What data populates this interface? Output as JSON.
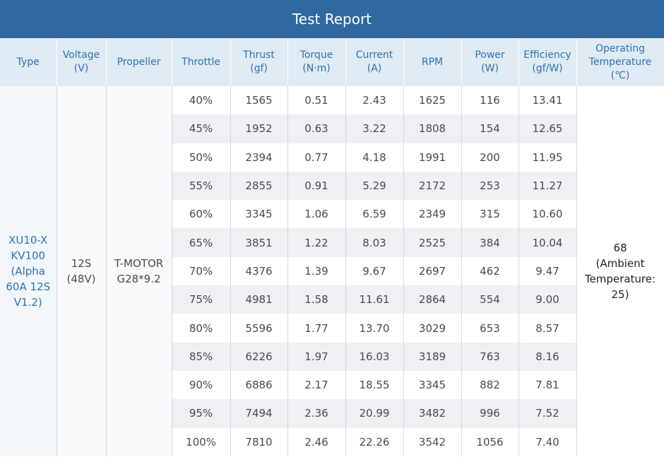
{
  "title": "Test Report",
  "headers": [
    "Type",
    "Voltage\n(V)",
    "Propeller",
    "Throttle",
    "Thrust\n(gf)",
    "Torque\n(N·m)",
    "Current\n(A)",
    "RPM",
    "Power\n(W)",
    "Efficiency\n(gf/W)",
    "Operating\nTemperature\n(℃)"
  ],
  "merged": {
    "type": "XU10-X KV100 (Alpha 60A 12S V1.2)",
    "voltage": "12S\n(48V)",
    "propeller": "T-MOTOR\nG28*9.2",
    "temperature": "68\n(Ambient\nTemperature:\n25)"
  },
  "rows": [
    [
      "40%",
      "1565",
      "0.51",
      "2.43",
      "1625",
      "116",
      "13.41"
    ],
    [
      "45%",
      "1952",
      "0.63",
      "3.22",
      "1808",
      "154",
      "12.65"
    ],
    [
      "50%",
      "2394",
      "0.77",
      "4.18",
      "1991",
      "200",
      "11.95"
    ],
    [
      "55%",
      "2855",
      "0.91",
      "5.29",
      "2172",
      "253",
      "11.27"
    ],
    [
      "60%",
      "3345",
      "1.06",
      "6.59",
      "2349",
      "315",
      "10.60"
    ],
    [
      "65%",
      "3851",
      "1.22",
      "8.03",
      "2525",
      "384",
      "10.04"
    ],
    [
      "70%",
      "4376",
      "1.39",
      "9.67",
      "2697",
      "462",
      "9.47"
    ],
    [
      "75%",
      "4981",
      "1.58",
      "11.61",
      "2864",
      "554",
      "9.00"
    ],
    [
      "80%",
      "5596",
      "1.77",
      "13.70",
      "3029",
      "653",
      "8.57"
    ],
    [
      "85%",
      "6226",
      "1.97",
      "16.03",
      "3189",
      "763",
      "8.16"
    ],
    [
      "90%",
      "6886",
      "2.17",
      "18.55",
      "3345",
      "882",
      "7.81"
    ],
    [
      "95%",
      "7494",
      "2.36",
      "20.99",
      "3482",
      "996",
      "7.52"
    ],
    [
      "100%",
      "7810",
      "2.46",
      "22.26",
      "3542",
      "1056",
      "7.40"
    ]
  ]
}
